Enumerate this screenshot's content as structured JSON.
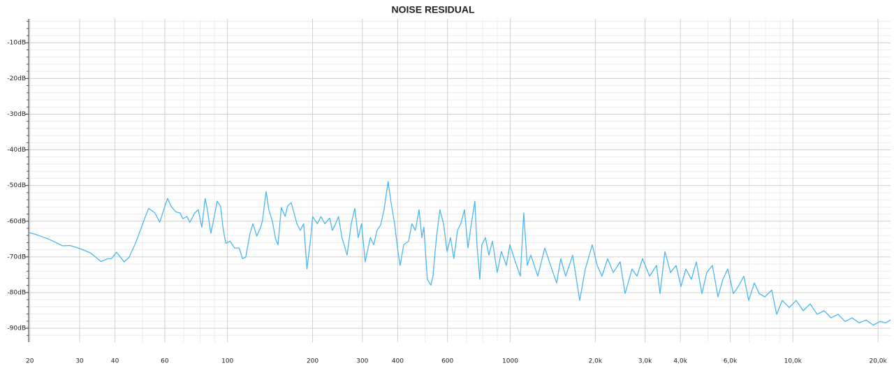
{
  "chart_data": {
    "type": "line",
    "title": "NOISE RESIDUAL",
    "xscale": "log",
    "grid": true,
    "xlim": [
      19.8,
      22140
    ],
    "ylim": [
      -93.9,
      -3.3
    ],
    "xticks": [
      20,
      30,
      40,
      60,
      100,
      200,
      300,
      400,
      600,
      1000,
      {
        "value": 2000,
        "label": "2,0k"
      },
      {
        "value": 3000,
        "label": "3,0k"
      },
      {
        "value": 4000,
        "label": "4,0k"
      },
      {
        "value": 6000,
        "label": "6,0k"
      },
      {
        "value": 10000,
        "label": "10,0k"
      },
      {
        "value": 20000,
        "label": "20,0k"
      }
    ],
    "xminorticks": [
      50,
      70,
      80,
      90,
      500,
      700,
      800,
      900,
      5000,
      7000,
      8000,
      9000
    ],
    "yticks": [
      {
        "value": -10,
        "label": "-10dB"
      },
      {
        "value": -20,
        "label": "-20dB"
      },
      {
        "value": -30,
        "label": "-30dB"
      },
      {
        "value": -40,
        "label": "-40dB"
      },
      {
        "value": -50,
        "label": "-50dB"
      },
      {
        "value": -60,
        "label": "-60dB"
      },
      {
        "value": -70,
        "label": "-70dB"
      },
      {
        "value": -80,
        "label": "-80dB"
      },
      {
        "value": -90,
        "label": "-90dB"
      }
    ],
    "yminorticks": [
      -4,
      -6,
      -8,
      -12,
      -14,
      -16,
      -18,
      -22,
      -24,
      -26,
      -28,
      -32,
      -34,
      -36,
      -38,
      -42,
      -44,
      -46,
      -48,
      -52,
      -54,
      -56,
      -58,
      -62,
      -64,
      -66,
      -68,
      -72,
      -74,
      -76,
      -78,
      -82,
      -84,
      -86,
      -88,
      -92
    ],
    "x": [
      19.8,
      20.8,
      23.3,
      26.1,
      27.7,
      30.1,
      32.8,
      35.7,
      37.8,
      38.9,
      40.5,
      43.1,
      44.9,
      47.5,
      50.9,
      52.6,
      55.4,
      57.6,
      60.3,
      61.4,
      63.1,
      65.7,
      68.0,
      69.5,
      71.9,
      73.6,
      76.6,
      78.8,
      81.1,
      83.4,
      84.9,
      87.3,
      88.8,
      91.9,
      94.5,
      96.7,
      98.7,
      102,
      106,
      110,
      113,
      116,
      120,
      123,
      127,
      131,
      133,
      137,
      140,
      144,
      148,
      151,
      155,
      160,
      163,
      168,
      172,
      176,
      181,
      186,
      191,
      197,
      200,
      208,
      214,
      221,
      230,
      235,
      240,
      247,
      254,
      265,
      274,
      282,
      290,
      298,
      307,
      320,
      329,
      338,
      348,
      358,
      370,
      379,
      390,
      401,
      408,
      420,
      437,
      449,
      462,
      476,
      487,
      495,
      509,
      524,
      533,
      548,
      564,
      581,
      598,
      615,
      632,
      651,
      669,
      689,
      709,
      729,
      750,
      763,
      781,
      794,
      817,
      841,
      865,
      900,
      931,
      969,
      997,
      1043,
      1086,
      1117,
      1149,
      1183,
      1252,
      1325,
      1403,
      1460,
      1510,
      1571,
      1663,
      1761,
      1843,
      1951,
      2030,
      2112,
      2211,
      2314,
      2449,
      2549,
      2698,
      2808,
      2938,
      3111,
      3293,
      3388,
      3525,
      3689,
      3862,
      4018,
      4181,
      4375,
      4553,
      4765,
      4958,
      5190,
      5432,
      5652,
      5882,
      6155,
      6405,
      6704,
      6976,
      7301,
      7598,
      7951,
      8417,
      8760,
      9168,
      9706,
      10270,
      10870,
      11510,
      12180,
      12900,
      13650,
      14450,
      15300,
      16190,
      17140,
      18150,
      19210,
      20330,
      21270,
      22140
    ],
    "series": [
      {
        "color": "#4db6ef",
        "values": [
          -63.2,
          -63.6,
          -65.0,
          -66.9,
          -66.8,
          -67.7,
          -68.9,
          -71.3,
          -70.5,
          -70.5,
          -68.7,
          -71.4,
          -70.1,
          -65.8,
          -59.3,
          -56.4,
          -57.7,
          -60.3,
          -55.4,
          -53.6,
          -55.8,
          -57.4,
          -57.7,
          -59.3,
          -58.7,
          -60.3,
          -57.7,
          -56.8,
          -61.7,
          -53.6,
          -56.8,
          -63.4,
          -60.7,
          -54.4,
          -55.8,
          -62.6,
          -66.2,
          -65.6,
          -67.5,
          -67.5,
          -70.5,
          -70.1,
          -63.6,
          -60.7,
          -64.2,
          -61.7,
          -59.9,
          -51.7,
          -56.8,
          -59.9,
          -65.0,
          -66.6,
          -56.2,
          -58.7,
          -55.8,
          -54.8,
          -57.7,
          -60.7,
          -62.6,
          -60.7,
          -73.4,
          -64.6,
          -58.7,
          -60.7,
          -58.7,
          -60.7,
          -59.1,
          -62.6,
          -61.1,
          -58.7,
          -64.6,
          -69.5,
          -60.7,
          -56.4,
          -64.6,
          -60.7,
          -71.4,
          -64.6,
          -66.6,
          -62.6,
          -61.1,
          -56.8,
          -48.9,
          -54.8,
          -60.7,
          -68.5,
          -72.4,
          -66.6,
          -65.6,
          -60.7,
          -62.6,
          -56.8,
          -64.6,
          -61.7,
          -76.3,
          -77.9,
          -75.4,
          -64.6,
          -56.8,
          -60.7,
          -68.5,
          -64.6,
          -70.5,
          -62.6,
          -60.7,
          -56.8,
          -67.5,
          -60.7,
          -54.4,
          -66.6,
          -76.3,
          -66.6,
          -64.6,
          -69.5,
          -65.6,
          -74.4,
          -68.5,
          -72.4,
          -66.6,
          -71.4,
          -75.4,
          -57.7,
          -72.4,
          -69.5,
          -75.4,
          -67.5,
          -73.4,
          -77.3,
          -70.5,
          -75.4,
          -69.5,
          -82.2,
          -73.4,
          -66.6,
          -72.4,
          -75.4,
          -70.5,
          -74.4,
          -71.4,
          -80.3,
          -73.4,
          -75.4,
          -70.5,
          -75.4,
          -72.4,
          -80.3,
          -68.5,
          -74.4,
          -72.4,
          -78.3,
          -73.4,
          -76.3,
          -71.4,
          -80.3,
          -74.4,
          -72.4,
          -81.2,
          -76.3,
          -73.4,
          -80.3,
          -78.3,
          -75.4,
          -82.2,
          -77.3,
          -80.3,
          -81.2,
          -79.3,
          -86.1,
          -82.2,
          -84.2,
          -82.2,
          -85.1,
          -83.2,
          -86.1,
          -85.1,
          -87.1,
          -86.1,
          -88.1,
          -87.1,
          -88.5,
          -87.7,
          -89.1,
          -88.1,
          -88.5,
          -87.7
        ]
      }
    ]
  }
}
